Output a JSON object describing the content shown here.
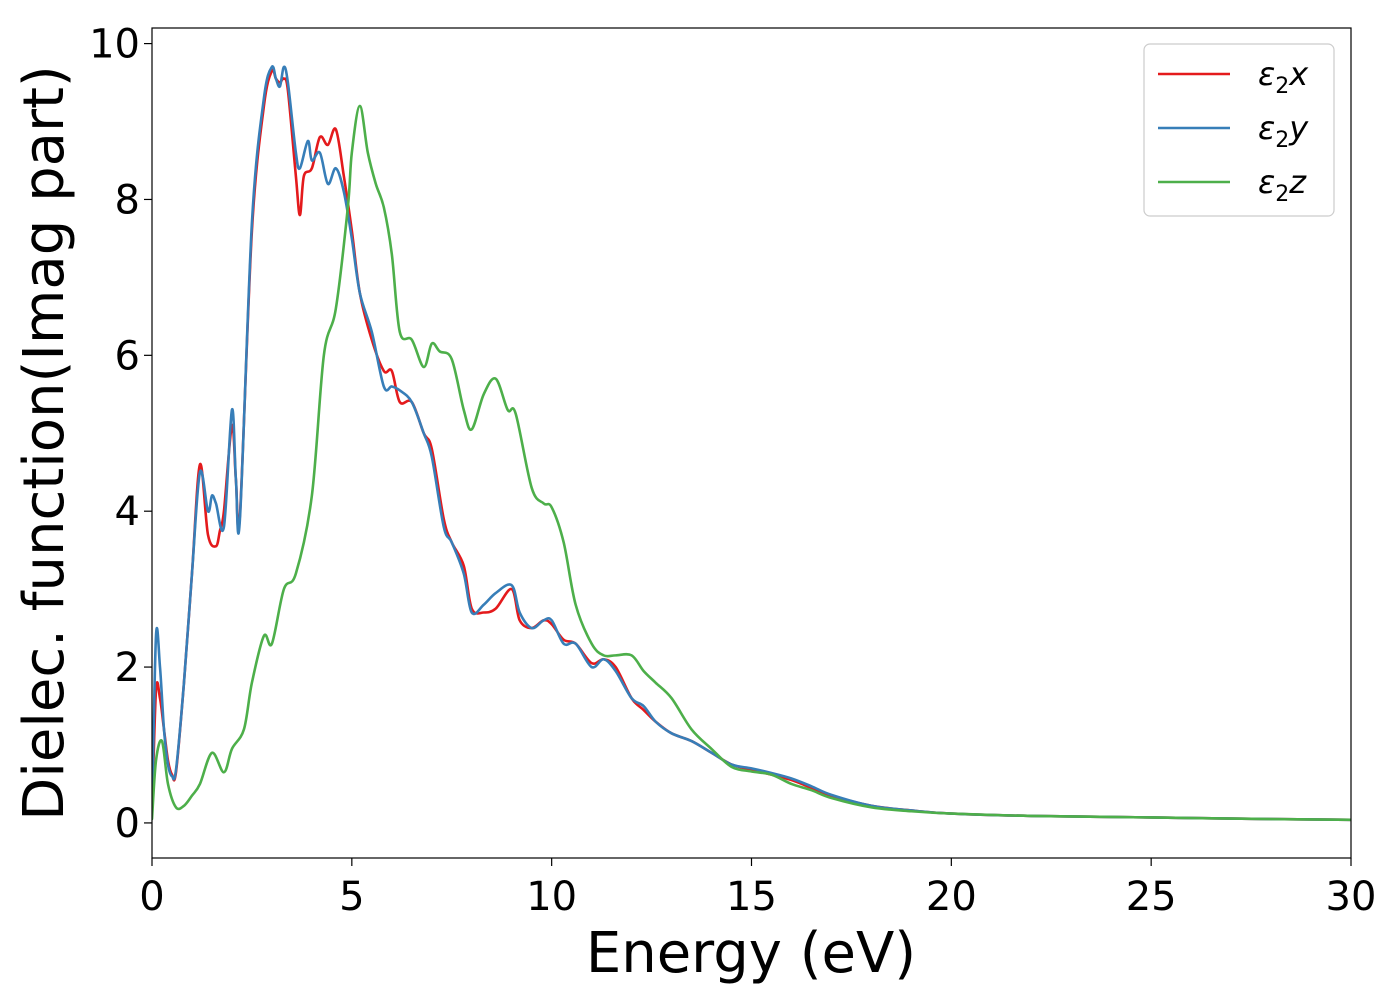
{
  "chart_data": {
    "type": "line",
    "xlabel": "Energy (eV)",
    "ylabel": "Dielec. function(Imag part)",
    "xlim": [
      0,
      30
    ],
    "ylim": [
      -0.45,
      10.2
    ],
    "xticks": [
      0,
      5,
      10,
      15,
      20,
      25,
      30
    ],
    "yticks": [
      0,
      2,
      4,
      6,
      8,
      10
    ],
    "grid": false,
    "legend_position": "top-right",
    "series": [
      {
        "name": "ε2x",
        "legend_label": {
          "base": "ε",
          "sub": "2",
          "var": "x"
        },
        "color": "#e41a1c",
        "x": [
          0,
          0.1,
          0.2,
          0.3,
          0.4,
          0.5,
          0.6,
          0.8,
          1.0,
          1.2,
          1.4,
          1.6,
          1.7,
          1.8,
          2.0,
          2.1,
          2.2,
          2.5,
          2.8,
          3.0,
          3.1,
          3.2,
          3.3,
          3.4,
          3.6,
          3.7,
          3.8,
          4.0,
          4.2,
          4.4,
          4.6,
          4.8,
          5.0,
          5.2,
          5.5,
          5.8,
          6.0,
          6.2,
          6.5,
          6.8,
          7.0,
          7.3,
          7.5,
          7.8,
          8.0,
          8.3,
          8.6,
          9.0,
          9.2,
          9.5,
          9.8,
          10.0,
          10.3,
          10.6,
          11.0,
          11.3,
          11.6,
          12.0,
          12.3,
          12.6,
          13.0,
          13.5,
          14.0,
          14.5,
          15.0,
          15.5,
          16.0,
          16.5,
          17.0,
          18.0,
          19.0,
          20.0,
          22.0,
          25.0,
          28.0,
          30.0
        ],
        "y": [
          0.1,
          1.7,
          1.6,
          1.2,
          0.8,
          0.62,
          0.65,
          1.8,
          3.2,
          4.6,
          3.7,
          3.55,
          3.75,
          4.0,
          5.1,
          4.4,
          3.95,
          7.6,
          9.2,
          9.65,
          9.55,
          9.5,
          9.55,
          9.4,
          8.3,
          7.8,
          8.3,
          8.4,
          8.8,
          8.7,
          8.9,
          8.3,
          7.6,
          6.8,
          6.2,
          5.8,
          5.8,
          5.4,
          5.4,
          5.0,
          4.8,
          3.9,
          3.6,
          3.3,
          2.75,
          2.7,
          2.75,
          3.0,
          2.6,
          2.5,
          2.6,
          2.55,
          2.35,
          2.3,
          2.05,
          2.1,
          2.0,
          1.6,
          1.45,
          1.3,
          1.15,
          1.05,
          0.9,
          0.75,
          0.68,
          0.62,
          0.55,
          0.45,
          0.35,
          0.22,
          0.16,
          0.12,
          0.09,
          0.07,
          0.05,
          0.04
        ]
      },
      {
        "name": "ε2y",
        "legend_label": {
          "base": "ε",
          "sub": "2",
          "var": "y"
        },
        "color": "#377eb8",
        "x": [
          0,
          0.1,
          0.2,
          0.3,
          0.4,
          0.5,
          0.6,
          0.8,
          1.0,
          1.2,
          1.4,
          1.5,
          1.6,
          1.8,
          2.0,
          2.1,
          2.2,
          2.5,
          2.8,
          3.0,
          3.1,
          3.2,
          3.3,
          3.4,
          3.6,
          3.7,
          3.9,
          4.0,
          4.2,
          4.4,
          4.6,
          4.8,
          5.0,
          5.2,
          5.5,
          5.8,
          6.0,
          6.2,
          6.5,
          6.8,
          7.0,
          7.3,
          7.5,
          7.8,
          8.0,
          8.3,
          8.6,
          9.0,
          9.2,
          9.5,
          9.8,
          10.0,
          10.3,
          10.6,
          11.0,
          11.3,
          11.6,
          12.0,
          12.3,
          12.6,
          13.0,
          13.5,
          14.0,
          14.5,
          15.0,
          15.5,
          16.0,
          16.5,
          17.0,
          18.0,
          19.0,
          20.0,
          22.0,
          25.0,
          28.0,
          30.0
        ],
        "y": [
          0.1,
          2.4,
          2.0,
          1.2,
          0.75,
          0.6,
          0.68,
          1.8,
          3.2,
          4.5,
          4.0,
          4.2,
          4.1,
          3.8,
          5.3,
          4.4,
          3.9,
          7.7,
          9.3,
          9.7,
          9.55,
          9.45,
          9.7,
          9.5,
          8.6,
          8.4,
          8.75,
          8.5,
          8.6,
          8.2,
          8.4,
          8.1,
          7.5,
          6.8,
          6.3,
          5.6,
          5.6,
          5.55,
          5.4,
          5.0,
          4.7,
          3.8,
          3.6,
          3.2,
          2.7,
          2.8,
          2.95,
          3.05,
          2.7,
          2.5,
          2.6,
          2.6,
          2.3,
          2.3,
          2.0,
          2.1,
          1.95,
          1.6,
          1.5,
          1.3,
          1.15,
          1.05,
          0.9,
          0.75,
          0.7,
          0.64,
          0.57,
          0.47,
          0.36,
          0.22,
          0.16,
          0.12,
          0.09,
          0.07,
          0.05,
          0.04
        ]
      },
      {
        "name": "ε2z",
        "legend_label": {
          "base": "ε",
          "sub": "2",
          "var": "z"
        },
        "color": "#4daf4a",
        "x": [
          0,
          0.1,
          0.25,
          0.4,
          0.6,
          0.8,
          1.0,
          1.2,
          1.5,
          1.8,
          2.0,
          2.3,
          2.5,
          2.8,
          3.0,
          3.3,
          3.6,
          4.0,
          4.3,
          4.6,
          4.9,
          5.0,
          5.2,
          5.4,
          5.6,
          5.8,
          6.0,
          6.2,
          6.5,
          6.8,
          7.0,
          7.2,
          7.5,
          7.8,
          8.0,
          8.3,
          8.6,
          8.9,
          9.1,
          9.5,
          9.8,
          10.0,
          10.3,
          10.6,
          11.0,
          11.3,
          11.6,
          12.0,
          12.3,
          12.6,
          13.0,
          13.5,
          14.0,
          14.5,
          15.0,
          15.5,
          16.0,
          16.5,
          17.0,
          18.0,
          19.0,
          20.0,
          22.0,
          25.0,
          28.0,
          30.0
        ],
        "y": [
          0.05,
          0.8,
          1.05,
          0.5,
          0.2,
          0.22,
          0.35,
          0.5,
          0.9,
          0.65,
          0.95,
          1.2,
          1.8,
          2.4,
          2.3,
          3.0,
          3.2,
          4.2,
          6.0,
          6.6,
          7.9,
          8.6,
          9.2,
          8.6,
          8.2,
          7.9,
          7.3,
          6.3,
          6.2,
          5.85,
          6.15,
          6.05,
          5.95,
          5.3,
          5.05,
          5.5,
          5.7,
          5.3,
          5.25,
          4.3,
          4.1,
          4.05,
          3.6,
          2.8,
          2.3,
          2.15,
          2.15,
          2.15,
          1.95,
          1.8,
          1.6,
          1.2,
          0.95,
          0.72,
          0.66,
          0.62,
          0.5,
          0.42,
          0.32,
          0.2,
          0.15,
          0.12,
          0.09,
          0.07,
          0.05,
          0.04
        ]
      }
    ]
  }
}
